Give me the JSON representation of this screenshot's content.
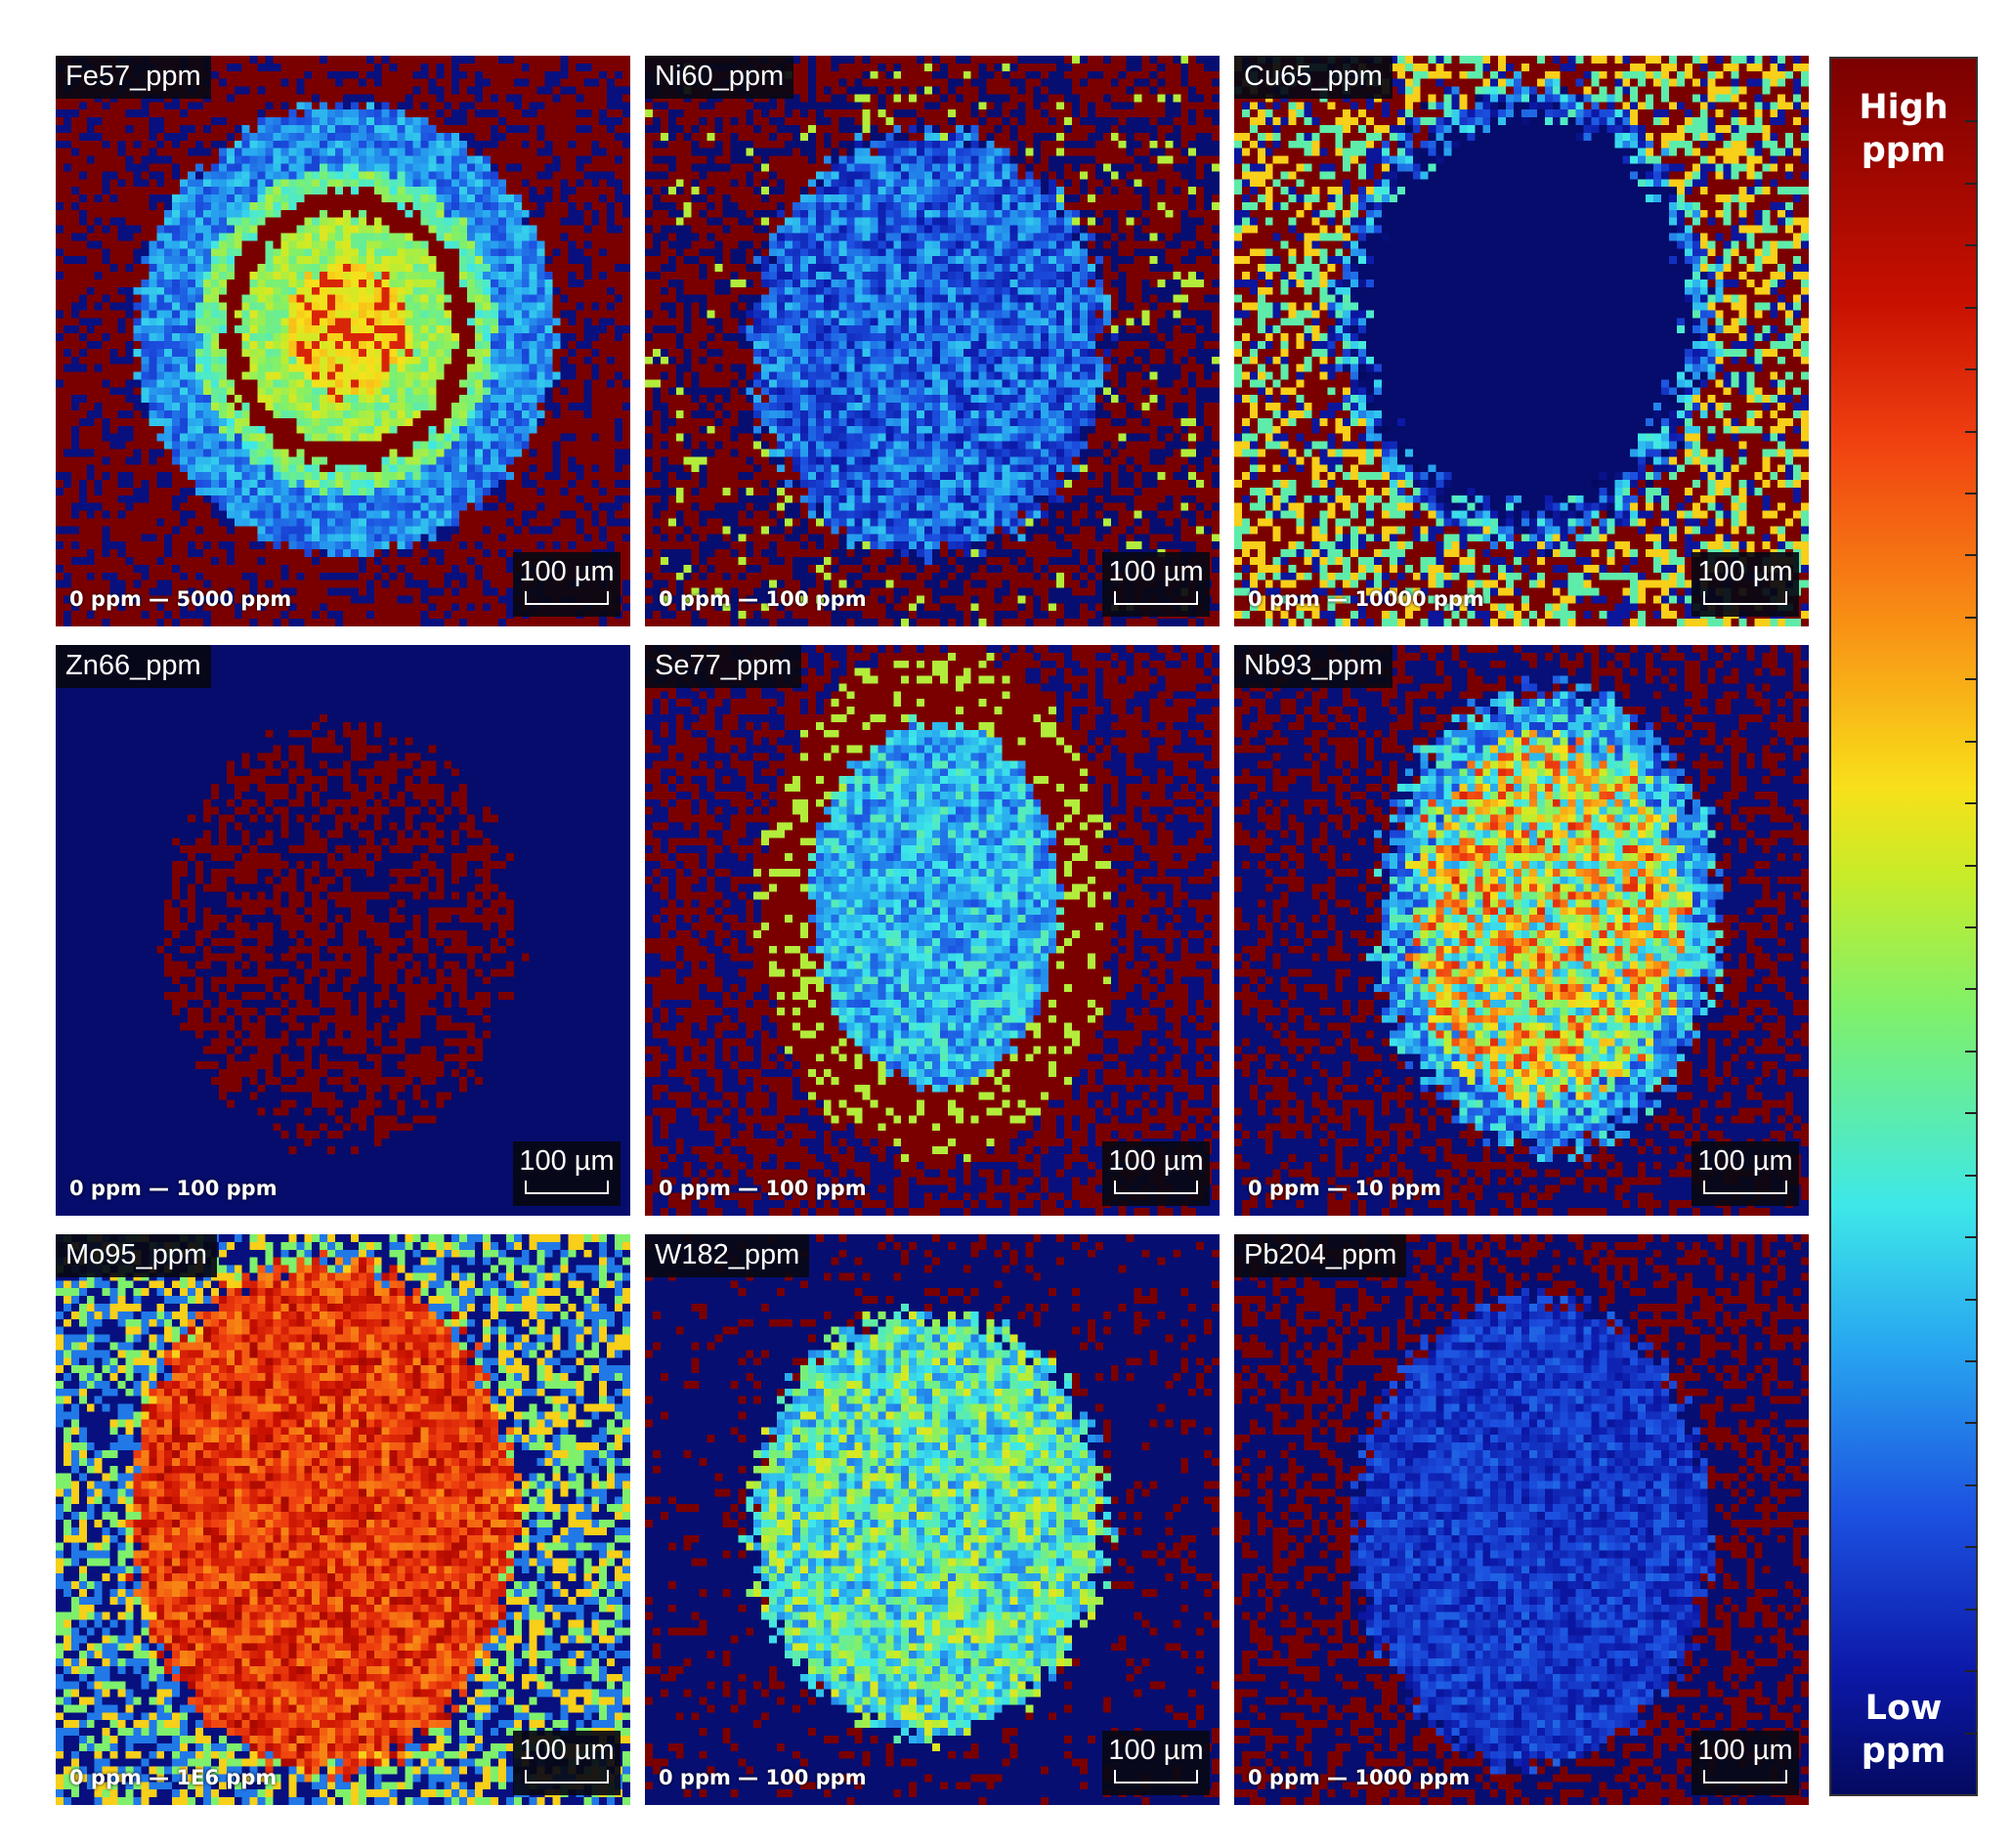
{
  "panels": [
    {
      "title": "Fe57_ppm",
      "range": "0 ppm — 5000 ppm",
      "scale": "100 µm",
      "pattern": "ring"
    },
    {
      "title": "Ni60_ppm",
      "range": "0 ppm — 100 ppm",
      "scale": "100 µm",
      "pattern": "blue-blob"
    },
    {
      "title": "Cu65_ppm",
      "range": "0 ppm — 10000 ppm",
      "scale": "100 µm",
      "pattern": "hollow"
    },
    {
      "title": "Zn66_ppm",
      "range": "0 ppm — 100 ppm",
      "scale": "100 µm",
      "pattern": "sparse-red"
    },
    {
      "title": "Se77_ppm",
      "range": "0 ppm — 100 ppm",
      "scale": "100 µm",
      "pattern": "halo"
    },
    {
      "title": "Nb93_ppm",
      "range": "0 ppm — 10 ppm",
      "scale": "100 µm",
      "pattern": "mixed-blob"
    },
    {
      "title": "Mo95_ppm",
      "range": "0 ppm — 1E6 ppm",
      "scale": "100 µm",
      "pattern": "red-blob"
    },
    {
      "title": "W182_ppm",
      "range": "0 ppm — 100 ppm",
      "scale": "100 µm",
      "pattern": "cyan-blob"
    },
    {
      "title": "Pb204_ppm",
      "range": "0 ppm — 1000 ppm",
      "scale": "100 µm",
      "pattern": "dark-blob"
    }
  ],
  "colorbar": {
    "high": "High\nppm",
    "low": "Low\nppm",
    "top_color": "#7a0000",
    "bottom_color": "#040a60"
  }
}
